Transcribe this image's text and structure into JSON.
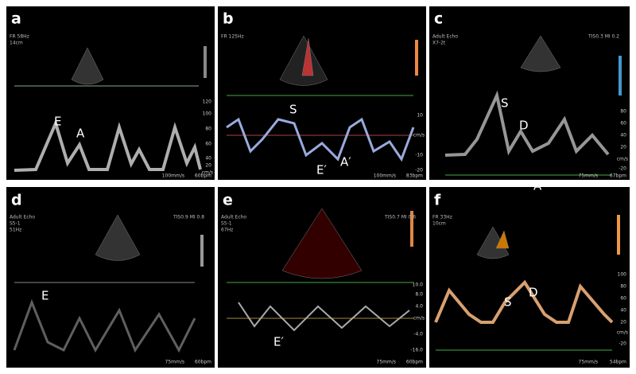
{
  "panels": [
    {
      "letter": "a",
      "header": [
        "FR 58Hz",
        "14cm"
      ],
      "labels": [
        "E",
        "A"
      ],
      "scale": [
        "120",
        "100",
        "80",
        "60",
        "40",
        "20",
        "cm/s"
      ],
      "footer": [
        "100mm/s",
        "60bpm"
      ]
    },
    {
      "letter": "b",
      "header": [
        "FR 125Hz"
      ],
      "labels": [
        "S",
        "E′",
        "A′"
      ],
      "scale": [
        "10",
        "cm/s",
        "-10",
        "-20"
      ],
      "footer": [
        "100mm/s",
        "83bpm"
      ]
    },
    {
      "letter": "c",
      "header": [
        "Adult Echo",
        "X7-2t",
        "TIS0.3 MI 0.2"
      ],
      "labels": [
        "S",
        "D",
        "A"
      ],
      "scale": [
        "80",
        "60",
        "40",
        "20",
        "cm/s",
        "-20"
      ],
      "footer": [
        "75mm/s",
        "67bpm"
      ]
    },
    {
      "letter": "d",
      "header": [
        "Adult Echo",
        "S5-1",
        "51Hz",
        "TIS0.9 MI 0.8"
      ],
      "labels": [
        "E"
      ],
      "scale": [],
      "footer": [
        "75mm/s",
        "60bpm"
      ]
    },
    {
      "letter": "e",
      "header": [
        "Adult Echo",
        "S5-1",
        "67Hz",
        "TIS0.7 MI 0.6"
      ],
      "labels": [
        "E′"
      ],
      "scale": [
        "10.0",
        "8.0",
        "4.0",
        "cm/s",
        "-4.0",
        "-16.0"
      ],
      "footer": [
        "75mm/s",
        "60bpm"
      ]
    },
    {
      "letter": "f",
      "header": [
        "FR 33Hz",
        "10cm"
      ],
      "labels": [
        "S",
        "D"
      ],
      "scale": [
        "100",
        "80",
        "60",
        "40",
        "20",
        "cm/s",
        "-20"
      ],
      "footer": [
        "75mm/s",
        "54bpm"
      ]
    }
  ]
}
